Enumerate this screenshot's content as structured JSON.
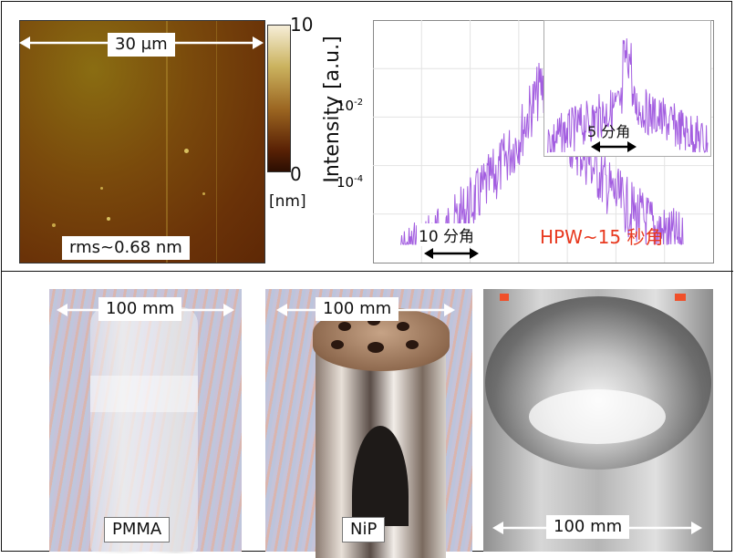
{
  "afm": {
    "scale_label": "30 μm",
    "rms_label": "rms~0.68 nm",
    "colorbar": {
      "max": "10",
      "min": "0",
      "unit": "[nm]"
    }
  },
  "spectrum": {
    "ylabel": "Intensity [a.u.]",
    "ticks": {
      "y1_base": "10",
      "y1_exp": "-2",
      "y2_base": "10",
      "y2_exp": "-4"
    },
    "arrow_label": "10 分角",
    "hpw_label": "HPW~15 秒角",
    "inset_arrow_label": "5 分角",
    "colors": {
      "trace": "#a35ee0",
      "hpw": "#e8391f"
    }
  },
  "photos": [
    {
      "id": "pmma",
      "size_label": "100 mm",
      "caption": "PMMA"
    },
    {
      "id": "nip",
      "size_label": "100 mm",
      "caption": "NiP"
    },
    {
      "id": "mirror",
      "size_label": "100 mm"
    }
  ],
  "chart_data": {
    "type": "line",
    "title": "",
    "xlabel": "",
    "ylabel": "Intensity [a.u.]",
    "yscale": "log",
    "series": [
      {
        "values": [
          3e-05,
          6e-05,
          0.0001,
          0.0003,
          0.001,
          0.005,
          0.05,
          0.006,
          0.002,
          0.0005,
          0.0002,
          0.0001,
          6e-05
        ]
      }
    ],
    "annotations": [
      "10 分角",
      "HPW~15 秒角",
      "5 分角"
    ]
  }
}
